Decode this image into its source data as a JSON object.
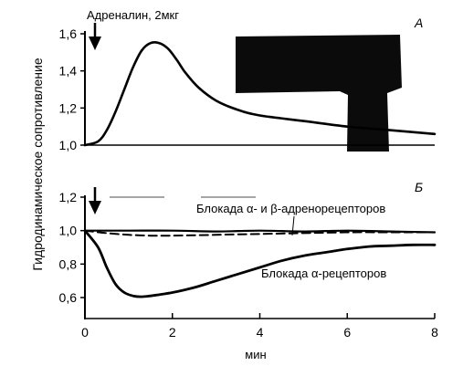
{
  "chart_data": [
    {
      "panel_letter": "А",
      "type": "line",
      "annotation": "Адреналин, 2мкг",
      "ylim": [
        1.0,
        1.6
      ],
      "xlim": [
        0,
        8
      ],
      "yticks": [
        "1,0",
        "1,2",
        "1,4",
        "1,6"
      ],
      "series": [
        {
          "x": [
            0,
            0.3,
            0.5,
            0.7,
            0.9,
            1.1,
            1.3,
            1.5,
            1.7,
            1.9,
            2.1,
            2.3,
            2.6,
            3.0,
            3.5,
            4.0,
            5.0,
            6.0,
            7.0,
            8.0
          ],
          "y": [
            1.0,
            1.02,
            1.08,
            1.18,
            1.3,
            1.42,
            1.51,
            1.55,
            1.55,
            1.52,
            1.46,
            1.39,
            1.31,
            1.24,
            1.19,
            1.16,
            1.13,
            1.1,
            1.08,
            1.06
          ]
        }
      ]
    },
    {
      "panel_letter": "Б",
      "type": "line",
      "ylim": [
        0.6,
        1.2
      ],
      "xlim": [
        0,
        8
      ],
      "yticks": [
        "0,6",
        "0,8",
        "1,0",
        "1,2"
      ],
      "xticks": [
        "0",
        "2",
        "4",
        "6",
        "8"
      ],
      "xlabel": "мин",
      "ylabel": "Гидродинамическое сопротивление",
      "series": [
        {
          "name": "Блокада α- и β-адренорецепторов",
          "style": "solid",
          "x": [
            0,
            1,
            2,
            3,
            4,
            5,
            6,
            7,
            8
          ],
          "y": [
            1.0,
            1.0,
            1.0,
            0.995,
            1.0,
            0.995,
            1.0,
            0.995,
            0.99
          ]
        },
        {
          "name": "",
          "style": "dashed",
          "x": [
            0,
            0.5,
            1.0,
            1.5,
            2.0,
            3.0,
            4.0,
            5.0,
            6.0,
            7.0,
            8.0
          ],
          "y": [
            1.0,
            0.985,
            0.975,
            0.97,
            0.97,
            0.975,
            0.98,
            0.985,
            0.99,
            0.99,
            0.99
          ]
        },
        {
          "name": "Блокада α-рецепторов",
          "style": "solid",
          "x": [
            0,
            0.3,
            0.5,
            0.7,
            0.9,
            1.1,
            1.3,
            1.5,
            2.0,
            2.5,
            3.0,
            3.5,
            4.0,
            4.5,
            5.0,
            5.5,
            6.0,
            6.5,
            7.0,
            7.5,
            8.0
          ],
          "y": [
            1.0,
            0.9,
            0.78,
            0.68,
            0.63,
            0.61,
            0.605,
            0.61,
            0.63,
            0.66,
            0.7,
            0.74,
            0.78,
            0.82,
            0.85,
            0.87,
            0.89,
            0.905,
            0.91,
            0.915,
            0.915
          ]
        }
      ]
    }
  ]
}
